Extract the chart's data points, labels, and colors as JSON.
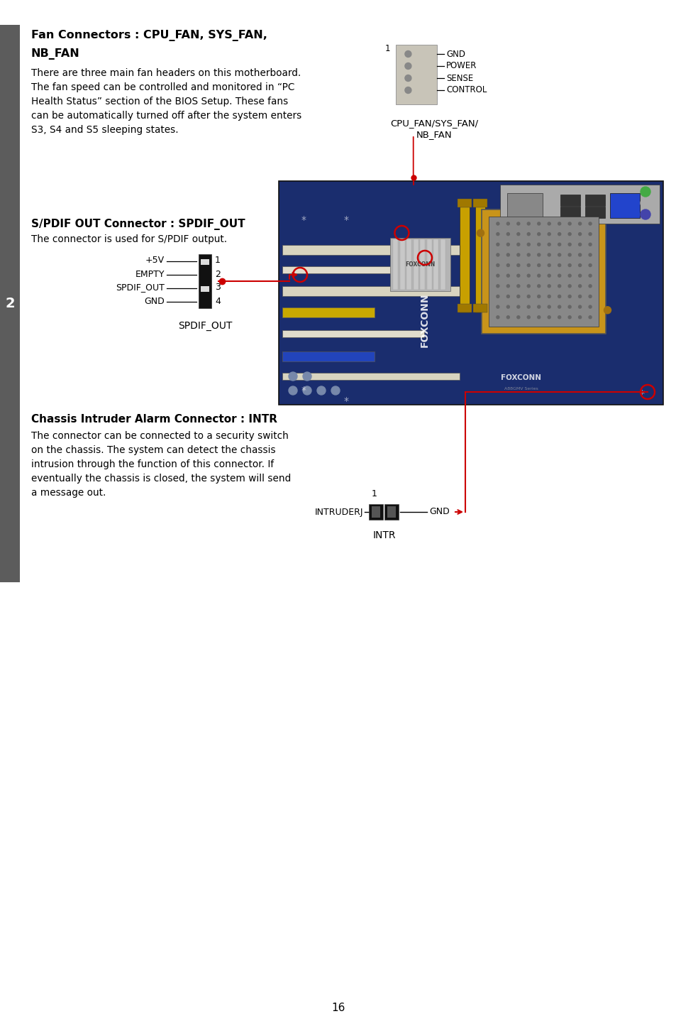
{
  "bg_color": "#ffffff",
  "page_number": "16",
  "sidebar_color": "#5c5c5c",
  "sidebar_number": "2",
  "s1_title_line1": "Fan Connectors : CPU_FAN, SYS_FAN,",
  "s1_title_line2": "NB_FAN",
  "s1_body_lines": [
    "There are three main fan headers on this motherboard.",
    "The fan speed can be controlled and monitored in “PC",
    "Health Status” section of the BIOS Setup. These fans",
    "can be automatically turned off after the system enters",
    "S3, S4 and S5 sleeping states."
  ],
  "fan_labels": [
    "GND",
    "POWER",
    "SENSE",
    "CONTROL"
  ],
  "fan_pin1": "1",
  "fan_cap1": "CPU_FAN/SYS_FAN/",
  "fan_cap2": "NB_FAN",
  "s2_title": "S/PDIF OUT Connector : SPDIF_OUT",
  "s2_body": "The connector is used for S/PDIF output.",
  "spdif_labels": [
    "+5V",
    "EMPTY",
    "SPDIF_OUT",
    "GND"
  ],
  "spdif_nums": [
    "1",
    "2",
    "3",
    "4"
  ],
  "spdif_cap": "SPDIF_OUT",
  "s3_title": "Chassis Intruder Alarm Connector : INTR",
  "s3_body_lines": [
    "The connector can be connected to a security switch",
    "on the chassis. The system can detect the chassis",
    "intrusion through the function of this connector. If",
    "eventually the chassis is closed, the system will send",
    "a message out."
  ],
  "intr_left": "INTRUDERJ",
  "intr_right": "GND",
  "intr_pin1": "1",
  "intr_cap": "INTR",
  "red": "#cc0000",
  "black": "#000000",
  "board_dark_blue": "#1a2d6e",
  "board_mid_blue": "#1e3a8a",
  "cpu_gold": "#c8941a",
  "cpu_silver": "#a0a0a0",
  "ram_gold": "#c8a000",
  "slot_cream": "#d8d4c0",
  "slot_blue": "#2244bb",
  "heatsink_gray": "#b4b4b4",
  "io_gray": "#d0d0d0",
  "dark_conn": "#111111",
  "mid_conn": "#555555",
  "fan_conn_bg": "#c8c4b8"
}
